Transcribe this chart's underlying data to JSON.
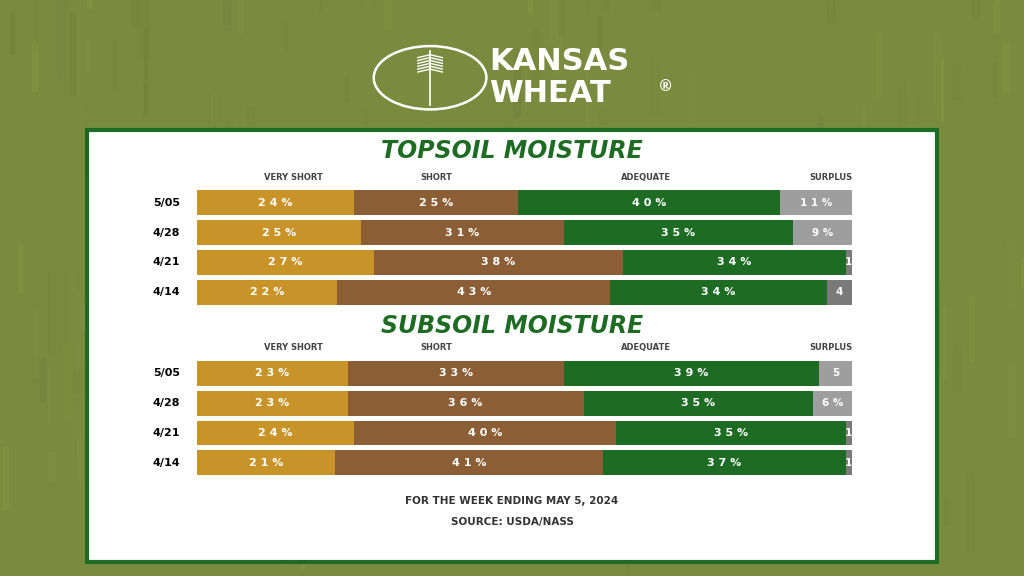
{
  "topsoil": {
    "rows": [
      "5/05",
      "4/28",
      "4/21",
      "4/14"
    ],
    "very_short": [
      24,
      25,
      27,
      22
    ],
    "short": [
      25,
      31,
      38,
      43
    ],
    "adequate": [
      40,
      35,
      34,
      34
    ],
    "surplus": [
      11,
      9,
      1,
      4
    ],
    "surplus_labels": [
      "1 1 %",
      "9 %",
      "1",
      "4"
    ]
  },
  "subsoil": {
    "rows": [
      "5/05",
      "4/28",
      "4/21",
      "4/14"
    ],
    "very_short": [
      23,
      23,
      24,
      21
    ],
    "short": [
      33,
      36,
      40,
      41
    ],
    "adequate": [
      39,
      35,
      35,
      37
    ],
    "surplus": [
      5,
      6,
      1,
      1
    ],
    "surplus_labels": [
      "5",
      "6 %",
      "1",
      "1"
    ]
  },
  "colors": {
    "very_short": "#C8942A",
    "short": "#8B5E35",
    "adequate": "#1E6B24",
    "surplus": "#9E9E9E",
    "surplus_dark": "#7A7A7A"
  },
  "bg_color_top": "#8B9B4A",
  "bg_color": "#7A8B40",
  "panel_border": "#1E6B24",
  "panel_bg": "#FFFFFF",
  "title_color": "#1E6B24",
  "header_color": "#444444",
  "bar_text_color": "#FFFFFF",
  "row_label_color": "#000000",
  "footnote_color": "#333333",
  "logo_color": "#FFFFFF",
  "topsoil_title": "TOPSOIL MOISTURE",
  "subsoil_title": "SUBSOIL MOISTURE",
  "col_headers": [
    "VERY SHORT",
    "SHORT",
    "ADEQUATE",
    "SURPLUS"
  ],
  "footnote_line1": "FOR THE WEEK ENDING MAY 5, 2024",
  "footnote_line2": "SOURCE: USDA/NASS",
  "topsoil_bar_labels": {
    "very_short": [
      "2 4 %",
      "2 5 %",
      "2 7 %",
      "2 2 %"
    ],
    "short": [
      "2 5 %",
      "3 1 %",
      "3 8 %",
      "4 3 %"
    ],
    "adequate": [
      "4 0 %",
      "3 5 %",
      "3 4 %",
      "3 4 %"
    ]
  },
  "subsoil_bar_labels": {
    "very_short": [
      "2 3 %",
      "2 3 %",
      "2 4 %",
      "2 1 %"
    ],
    "short": [
      "3 3 %",
      "3 6 %",
      "4 0 %",
      "4 1 %"
    ],
    "adequate": [
      "3 9 %",
      "3 5 %",
      "3 5 %",
      "3 7 %"
    ]
  }
}
